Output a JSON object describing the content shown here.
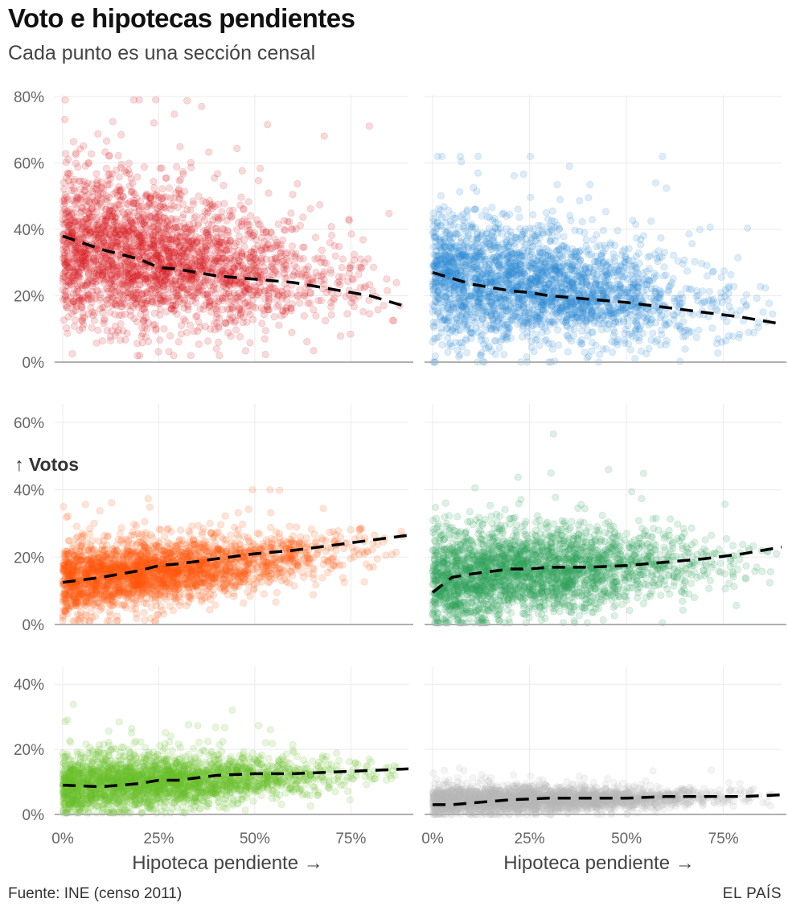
{
  "header": {
    "title": "Voto e hipotecas pendientes",
    "subtitle": "Cada punto es una sección censal"
  },
  "footer": {
    "source": "Fuente: INE (censo 2011)",
    "brand": "EL PAÍS"
  },
  "chart_data": {
    "type": "scatter",
    "title": "Voto e hipotecas pendientes",
    "subtitle": "Cada punto es una sección censal",
    "xlabel": "Hipoteca pendiente →",
    "ylabel": "↑ Votos",
    "x_ticks": [
      "0%",
      "25%",
      "50%",
      "75%"
    ],
    "x_tick_values": [
      0,
      25,
      50,
      75
    ],
    "xlim": [
      0,
      90
    ],
    "trend_line_style": "black dashed",
    "facets": [
      {
        "color": "#d7191c",
        "ylim": [
          0,
          80
        ],
        "y_ticks": [
          "0%",
          "20%",
          "40%",
          "60%",
          "80%"
        ],
        "y_tick_values": [
          0,
          20,
          40,
          60,
          80
        ],
        "trend": {
          "x": [
            0,
            10,
            20,
            25,
            30,
            40,
            50,
            60,
            70,
            80,
            90
          ],
          "y": [
            38,
            34,
            31,
            28.5,
            28,
            26,
            25,
            24,
            22,
            20,
            16.5
          ]
        },
        "cloud": {
          "n": 2600,
          "x_peak": 17,
          "x_spread": 16,
          "y_center": 31,
          "y_spread": 12,
          "slope": -0.17,
          "y_min": 2,
          "y_max": 79
        }
      },
      {
        "color": "#2e8bd6",
        "ylim": [
          0,
          80
        ],
        "y_ticks": [
          "0%",
          "20%",
          "40%",
          "60%",
          "80%"
        ],
        "y_tick_values": [
          0,
          20,
          40,
          60,
          80
        ],
        "trend": {
          "x": [
            0,
            10,
            20,
            25,
            30,
            40,
            50,
            60,
            70,
            80,
            90
          ],
          "y": [
            27,
            23.5,
            21.5,
            21,
            20,
            19,
            18,
            16.5,
            15,
            13.5,
            11.5
          ]
        },
        "cloud": {
          "n": 2600,
          "x_peak": 17,
          "x_spread": 16,
          "y_center": 23,
          "y_spread": 10,
          "slope": -0.13,
          "y_min": 0,
          "y_max": 62
        }
      },
      {
        "color": "#ff5a0f",
        "ylim": [
          0,
          65
        ],
        "y_ticks": [
          "0%",
          "20%",
          "40%",
          "60%"
        ],
        "y_tick_values": [
          0,
          20,
          40,
          60
        ],
        "trend": {
          "x": [
            0,
            10,
            20,
            25,
            30,
            40,
            50,
            60,
            70,
            80,
            90
          ],
          "y": [
            12.5,
            14,
            16,
            17.5,
            18,
            19.5,
            21,
            22,
            23.5,
            25,
            26.5
          ]
        },
        "cloud": {
          "n": 2600,
          "x_peak": 17,
          "x_spread": 16,
          "y_center": 15.5,
          "y_spread": 5.5,
          "slope": 0.12,
          "y_min": 1,
          "y_max": 40
        }
      },
      {
        "color": "#2ea05a",
        "ylim": [
          0,
          65
        ],
        "y_ticks": [
          "0%",
          "20%",
          "40%",
          "60%"
        ],
        "y_tick_values": [
          0,
          20,
          40,
          60
        ],
        "trend": {
          "x": [
            0,
            5,
            10,
            20,
            25,
            30,
            40,
            50,
            60,
            70,
            80,
            90
          ],
          "y": [
            9.5,
            14,
            15,
            16.5,
            16.5,
            17,
            17,
            17.5,
            18.5,
            19.5,
            21,
            23
          ]
        },
        "cloud": {
          "n": 2600,
          "x_peak": 17,
          "x_spread": 16,
          "y_center": 15.5,
          "y_spread": 7.5,
          "slope": 0.07,
          "y_min": 0.5,
          "y_max": 64
        }
      },
      {
        "color": "#6bbf2a",
        "ylim": [
          0,
          45
        ],
        "y_ticks": [
          "0%",
          "20%",
          "40%"
        ],
        "y_tick_values": [
          0,
          20,
          40
        ],
        "trend": {
          "x": [
            0,
            10,
            20,
            25,
            30,
            40,
            50,
            60,
            70,
            80,
            90
          ],
          "y": [
            9,
            8.5,
            9.5,
            10.5,
            10.5,
            12,
            12.5,
            12.5,
            13,
            13.5,
            14
          ]
        },
        "cloud": {
          "n": 2600,
          "x_peak": 17,
          "x_spread": 16,
          "y_center": 10,
          "y_spread": 4.5,
          "slope": 0.05,
          "y_min": 0.5,
          "y_max": 40
        }
      },
      {
        "color": "#b8b8b8",
        "ylim": [
          0,
          45
        ],
        "y_ticks": [
          "0%",
          "20%",
          "40%"
        ],
        "y_tick_values": [
          0,
          20,
          40
        ],
        "trend": {
          "x": [
            0,
            5,
            10,
            20,
            30,
            40,
            50,
            60,
            70,
            80,
            90
          ],
          "y": [
            3,
            3,
            3.5,
            4.5,
            5,
            5,
            5,
            5.5,
            5.5,
            5.5,
            6
          ]
        },
        "cloud": {
          "n": 2600,
          "x_peak": 17,
          "x_spread": 16,
          "y_center": 4.5,
          "y_spread": 2.2,
          "slope": 0.015,
          "y_min": 0,
          "y_max": 41
        }
      }
    ]
  }
}
